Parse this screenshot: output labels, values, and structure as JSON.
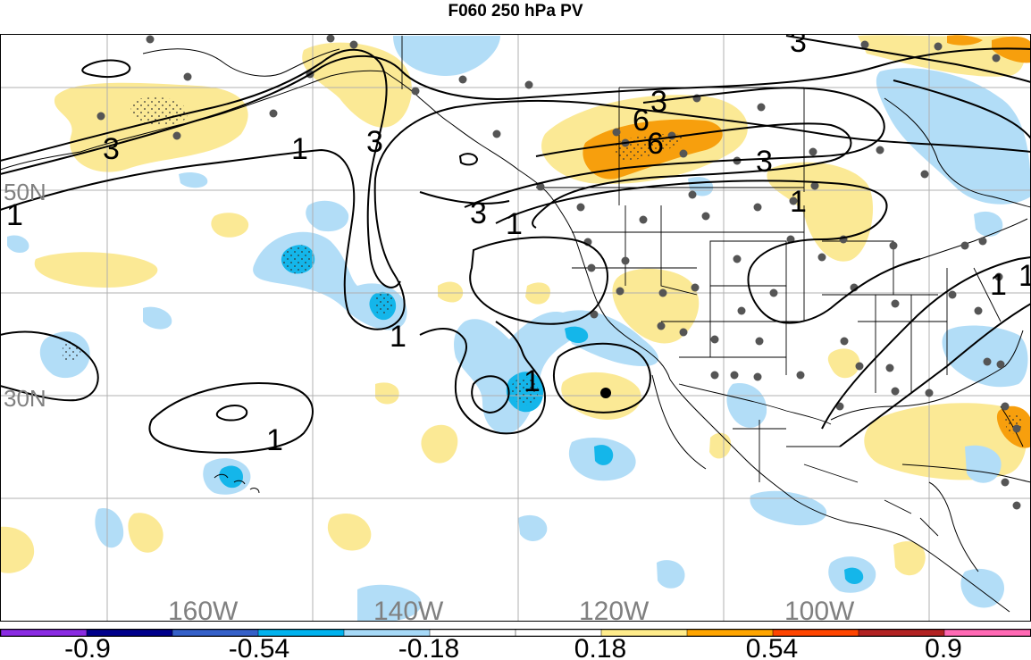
{
  "title": "F060 250 hPa PV",
  "latitude_labels": [
    "50N",
    "30N"
  ],
  "longitude_labels": [
    "160W",
    "140W",
    "120W",
    "100W"
  ],
  "colorbar": {
    "labels": [
      "-0.9",
      "-0.54",
      "-0.18",
      "0.18",
      "0.54",
      "0.9"
    ],
    "colors": [
      "#8a2be2",
      "#00008b",
      "#3560c8",
      "#00b2ee",
      "#a6d9f7",
      "#ffffff",
      "#ffffff",
      "#ffec8b",
      "#ffa500",
      "#ff4500",
      "#b22222",
      "#ff69b4"
    ]
  },
  "contour_labels": [
    "3",
    "1",
    "3",
    "1",
    "6",
    "3",
    "6",
    "3",
    "1",
    "3",
    "1",
    "1",
    "1",
    "1",
    "1",
    "1",
    "3"
  ],
  "anomaly_colors": {
    "light_positive": "#fbe995",
    "strong_positive": "#f79f0d",
    "light_negative": "#b2ddf7",
    "strong_negative": "#14b6ea"
  }
}
